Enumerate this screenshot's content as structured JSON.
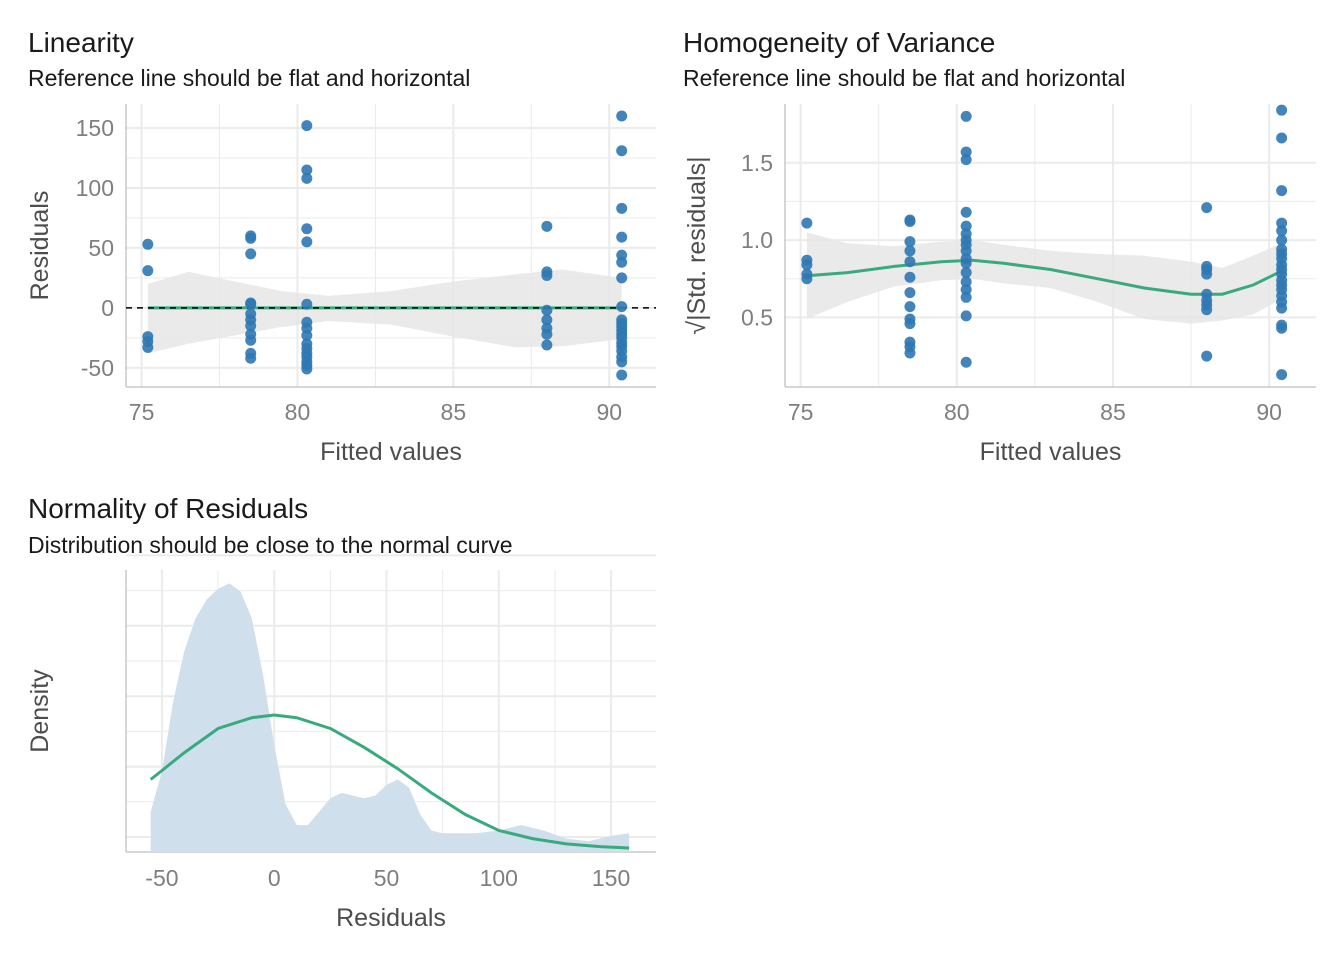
{
  "colors": {
    "point": "#2f78b2",
    "smooth": "#3aaa7e",
    "ribbon": "#e6e6e6",
    "density_fill": "#cfdfec",
    "grid": "#ebebeb",
    "axis": "#c8c8c8",
    "refline": "#000000"
  },
  "chart_data": [
    {
      "type": "scatter",
      "title": "Linearity",
      "subtitle": "Reference line should be flat and horizontal",
      "xlabel": "Fitted values",
      "ylabel": "Residuals",
      "xlim": [
        74.5,
        91.5
      ],
      "ylim": [
        -66,
        170
      ],
      "xticks": [
        75,
        80,
        85,
        90
      ],
      "xtick_labels": [
        "75",
        "80",
        "85",
        "90"
      ],
      "yticks": [
        -50,
        0,
        50,
        100,
        150
      ],
      "ytick_labels": [
        "-50",
        "0",
        "50",
        "100",
        "150"
      ],
      "grid": true,
      "reference_line": 0,
      "points": [
        [
          75.2,
          53
        ],
        [
          75.2,
          31
        ],
        [
          75.2,
          -24
        ],
        [
          75.2,
          -28
        ],
        [
          75.2,
          -33
        ],
        [
          78.5,
          60
        ],
        [
          78.5,
          58
        ],
        [
          78.5,
          45
        ],
        [
          78.5,
          4
        ],
        [
          78.5,
          3
        ],
        [
          78.5,
          -5
        ],
        [
          78.5,
          -10
        ],
        [
          78.5,
          -15
        ],
        [
          78.5,
          -22
        ],
        [
          78.5,
          -27
        ],
        [
          78.5,
          -38
        ],
        [
          78.5,
          -42
        ],
        [
          80.3,
          152
        ],
        [
          80.3,
          115
        ],
        [
          80.3,
          108
        ],
        [
          80.3,
          66
        ],
        [
          80.3,
          55
        ],
        [
          80.3,
          3
        ],
        [
          80.3,
          -12
        ],
        [
          80.3,
          -17
        ],
        [
          80.3,
          -23
        ],
        [
          80.3,
          -30
        ],
        [
          80.3,
          -34
        ],
        [
          80.3,
          -38
        ],
        [
          80.3,
          -41
        ],
        [
          80.3,
          -45
        ],
        [
          80.3,
          -48
        ],
        [
          80.3,
          -51
        ],
        [
          88.0,
          68
        ],
        [
          88.0,
          30
        ],
        [
          88.0,
          27
        ],
        [
          88.0,
          -2
        ],
        [
          88.0,
          -10
        ],
        [
          88.0,
          -17
        ],
        [
          88.0,
          -22
        ],
        [
          88.0,
          -31
        ],
        [
          90.4,
          160
        ],
        [
          90.4,
          131
        ],
        [
          90.4,
          83
        ],
        [
          90.4,
          59
        ],
        [
          90.4,
          44
        ],
        [
          90.4,
          38
        ],
        [
          90.4,
          25
        ],
        [
          90.4,
          1
        ],
        [
          90.4,
          -10
        ],
        [
          90.4,
          -13
        ],
        [
          90.4,
          -16
        ],
        [
          90.4,
          -19
        ],
        [
          90.4,
          -22
        ],
        [
          90.4,
          -25
        ],
        [
          90.4,
          -29
        ],
        [
          90.4,
          -32
        ],
        [
          90.4,
          -36
        ],
        [
          90.4,
          -41
        ],
        [
          90.4,
          -45
        ],
        [
          90.4,
          -56
        ]
      ],
      "smooth": {
        "x": [
          75.2,
          90.4
        ],
        "y": [
          0,
          0
        ]
      },
      "ribbon": {
        "x": [
          75.2,
          76.5,
          78,
          79.5,
          81,
          83,
          85,
          87,
          88.5,
          90.4
        ],
        "upper": [
          20,
          30,
          22,
          14,
          10,
          14,
          22,
          28,
          32,
          25
        ],
        "lower": [
          -38,
          -30,
          -23,
          -16,
          -11,
          -14,
          -24,
          -33,
          -32,
          -26
        ]
      }
    },
    {
      "type": "scatter",
      "title": "Homogeneity of Variance",
      "subtitle": "Reference line should be flat and horizontal",
      "xlabel": "Fitted values",
      "ylabel": "|Std. residuals|",
      "ylabel_prefix": "√",
      "xlim": [
        74.5,
        91.5
      ],
      "ylim": [
        0.05,
        1.88
      ],
      "xticks": [
        75,
        80,
        85,
        90
      ],
      "xtick_labels": [
        "75",
        "80",
        "85",
        "90"
      ],
      "yticks": [
        0.5,
        1.0,
        1.5
      ],
      "ytick_labels": [
        "0.5",
        "1.0",
        "1.5"
      ],
      "grid": true,
      "points": [
        [
          75.2,
          1.11
        ],
        [
          75.2,
          0.87
        ],
        [
          75.2,
          0.84
        ],
        [
          75.2,
          0.78
        ],
        [
          75.2,
          0.75
        ],
        [
          78.5,
          1.13
        ],
        [
          78.5,
          1.12
        ],
        [
          78.5,
          0.99
        ],
        [
          78.5,
          0.93
        ],
        [
          78.5,
          0.86
        ],
        [
          78.5,
          0.76
        ],
        [
          78.5,
          0.66
        ],
        [
          78.5,
          0.57
        ],
        [
          78.5,
          0.49
        ],
        [
          78.5,
          0.46
        ],
        [
          78.5,
          0.34
        ],
        [
          78.5,
          0.31
        ],
        [
          78.5,
          0.27
        ],
        [
          80.3,
          1.8
        ],
        [
          80.3,
          1.57
        ],
        [
          80.3,
          1.52
        ],
        [
          80.3,
          1.18
        ],
        [
          80.3,
          1.09
        ],
        [
          80.3,
          1.04
        ],
        [
          80.3,
          1.0
        ],
        [
          80.3,
          0.97
        ],
        [
          80.3,
          0.93
        ],
        [
          80.3,
          0.88
        ],
        [
          80.3,
          0.85
        ],
        [
          80.3,
          0.79
        ],
        [
          80.3,
          0.73
        ],
        [
          80.3,
          0.68
        ],
        [
          80.3,
          0.63
        ],
        [
          80.3,
          0.51
        ],
        [
          80.3,
          0.21
        ],
        [
          88.0,
          1.21
        ],
        [
          88.0,
          0.83
        ],
        [
          88.0,
          0.81
        ],
        [
          88.0,
          0.78
        ],
        [
          88.0,
          0.65
        ],
        [
          88.0,
          0.61
        ],
        [
          88.0,
          0.58
        ],
        [
          88.0,
          0.55
        ],
        [
          88.0,
          0.25
        ],
        [
          90.4,
          1.84
        ],
        [
          90.4,
          1.66
        ],
        [
          90.4,
          1.32
        ],
        [
          90.4,
          1.11
        ],
        [
          90.4,
          1.06
        ],
        [
          90.4,
          1.0
        ],
        [
          90.4,
          0.94
        ],
        [
          90.4,
          0.91
        ],
        [
          90.4,
          0.88
        ],
        [
          90.4,
          0.84
        ],
        [
          90.4,
          0.81
        ],
        [
          90.4,
          0.78
        ],
        [
          90.4,
          0.74
        ],
        [
          90.4,
          0.71
        ],
        [
          90.4,
          0.68
        ],
        [
          90.4,
          0.64
        ],
        [
          90.4,
          0.6
        ],
        [
          90.4,
          0.56
        ],
        [
          90.4,
          0.45
        ],
        [
          90.4,
          0.43
        ],
        [
          90.4,
          0.13
        ]
      ],
      "smooth": {
        "x": [
          75.2,
          76.5,
          78,
          79.5,
          80.5,
          81.5,
          83,
          84.5,
          86,
          87.5,
          88.5,
          89.5,
          90.4
        ],
        "y": [
          0.77,
          0.79,
          0.83,
          0.86,
          0.87,
          0.85,
          0.81,
          0.75,
          0.69,
          0.65,
          0.65,
          0.71,
          0.8
        ]
      },
      "ribbon": {
        "x": [
          75.2,
          76.5,
          78,
          79.5,
          80.5,
          81.5,
          83,
          84.5,
          86,
          87.5,
          88.5,
          89.5,
          90.4
        ],
        "upper": [
          1.05,
          0.98,
          0.96,
          0.99,
          1.0,
          0.97,
          0.93,
          0.91,
          0.9,
          0.86,
          0.82,
          0.9,
          0.98
        ],
        "lower": [
          0.49,
          0.6,
          0.7,
          0.74,
          0.75,
          0.72,
          0.69,
          0.6,
          0.49,
          0.46,
          0.48,
          0.52,
          0.62
        ]
      }
    },
    {
      "type": "area",
      "title": "Normality of Residuals",
      "subtitle": "Distribution should be close to the normal curve",
      "xlabel": "Residuals",
      "ylabel": "Density",
      "xlim": [
        -66,
        170
      ],
      "ylim": [
        0,
        1.05
      ],
      "xticks": [
        -50,
        0,
        50,
        100,
        150
      ],
      "xtick_labels": [
        "-50",
        "0",
        "50",
        "100",
        "150"
      ],
      "grid": true,
      "density": {
        "x": [
          -55,
          -50,
          -45,
          -40,
          -35,
          -30,
          -25,
          -20,
          -15,
          -10,
          -5,
          0,
          5,
          10,
          15,
          20,
          25,
          30,
          35,
          40,
          45,
          50,
          55,
          60,
          65,
          70,
          75,
          80,
          90,
          100,
          110,
          120,
          130,
          140,
          150,
          158
        ],
        "y": [
          0.15,
          0.3,
          0.56,
          0.75,
          0.87,
          0.94,
          0.98,
          1.0,
          0.97,
          0.87,
          0.66,
          0.4,
          0.18,
          0.1,
          0.1,
          0.15,
          0.2,
          0.22,
          0.21,
          0.2,
          0.21,
          0.25,
          0.27,
          0.24,
          0.14,
          0.08,
          0.07,
          0.07,
          0.07,
          0.08,
          0.1,
          0.08,
          0.05,
          0.04,
          0.06,
          0.07
        ]
      },
      "normal_curve": {
        "x": [
          -55,
          -40,
          -25,
          -10,
          0,
          10,
          25,
          40,
          55,
          70,
          85,
          100,
          115,
          130,
          145,
          158
        ],
        "y": [
          0.27,
          0.37,
          0.46,
          0.5,
          0.51,
          0.5,
          0.46,
          0.39,
          0.31,
          0.22,
          0.14,
          0.08,
          0.05,
          0.03,
          0.02,
          0.015
        ]
      }
    }
  ]
}
